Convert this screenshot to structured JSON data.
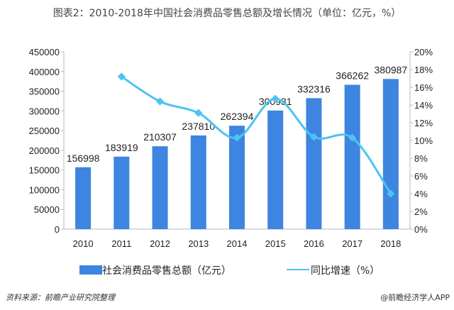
{
  "title": "图表2：2010-2018年中国社会消费品零售总额及增长情况（单位：亿元，%）",
  "source": "资料来源：前瞻产业研究院整理",
  "brand": "@前瞻经济学人APP",
  "colors": {
    "bar": "#3d85e0",
    "line": "#4dc3f0"
  },
  "chart_data": {
    "type": "bar+line",
    "categories": [
      "2010",
      "2011",
      "2012",
      "2013",
      "2014",
      "2015",
      "2016",
      "2017",
      "2018"
    ],
    "series": [
      {
        "name": "社会消费品零售总额（亿元）",
        "type": "bar",
        "axis": "left",
        "values": [
          156998,
          183919,
          210307,
          237810,
          262394,
          300931,
          332316,
          366262,
          380987
        ]
      },
      {
        "name": "同比增速（%）",
        "type": "line",
        "axis": "right",
        "values": [
          null,
          17.2,
          14.4,
          13.1,
          10.3,
          14.7,
          10.4,
          10.3,
          4.0
        ]
      }
    ],
    "left_axis": {
      "range": [
        0,
        450000
      ],
      "ticks": [
        "0",
        "50000",
        "100000",
        "150000",
        "200000",
        "250000",
        "300000",
        "350000",
        "400000",
        "450000"
      ]
    },
    "right_axis": {
      "range": [
        0,
        20
      ],
      "ticks": [
        "0%",
        "2%",
        "4%",
        "6%",
        "8%",
        "10%",
        "12%",
        "14%",
        "16%",
        "18%",
        "20%"
      ]
    },
    "grid": false,
    "legend_position": "bottom"
  }
}
